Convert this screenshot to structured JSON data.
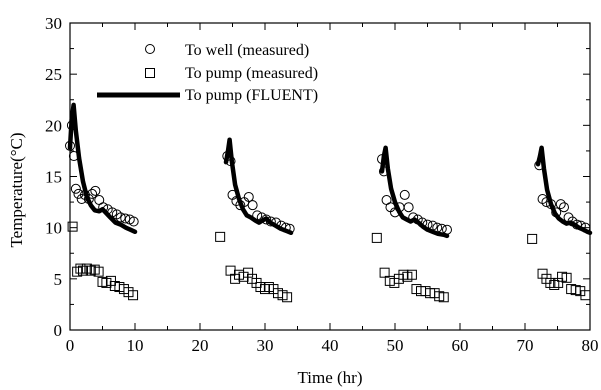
{
  "chart_data": {
    "type": "scatter",
    "title": "",
    "xlabel": "Time (hr)",
    "ylabel": "Temperature(°C)",
    "xlim": [
      0,
      80
    ],
    "ylim": [
      0,
      30
    ],
    "x_ticks": [
      "0",
      "10",
      "20",
      "30",
      "40",
      "50",
      "60",
      "70",
      "80"
    ],
    "y_ticks": [
      "0",
      "5",
      "10",
      "15",
      "20",
      "25",
      "30"
    ],
    "grid": false,
    "legend_position": "top-left",
    "series": [
      {
        "name": "To well (measured)",
        "kind": "scatter",
        "marker": "circle",
        "color": "#000000",
        "points": [
          [
            0.0,
            18.0
          ],
          [
            0.3,
            20.0
          ],
          [
            0.6,
            17.0
          ],
          [
            0.9,
            13.8
          ],
          [
            1.3,
            13.3
          ],
          [
            1.8,
            12.8
          ],
          [
            2.3,
            13.2
          ],
          [
            2.9,
            12.8
          ],
          [
            3.4,
            13.3
          ],
          [
            3.9,
            13.6
          ],
          [
            4.5,
            12.7
          ],
          [
            5.1,
            12.0
          ],
          [
            5.8,
            11.8
          ],
          [
            6.5,
            11.5
          ],
          [
            7.2,
            11.3
          ],
          [
            7.8,
            11.0
          ],
          [
            8.5,
            10.9
          ],
          [
            9.2,
            10.8
          ],
          [
            9.8,
            10.6
          ],
          [
            24.2,
            17.0
          ],
          [
            24.7,
            16.5
          ],
          [
            25.0,
            13.2
          ],
          [
            25.6,
            12.6
          ],
          [
            26.2,
            12.2
          ],
          [
            26.8,
            12.5
          ],
          [
            27.5,
            13.0
          ],
          [
            28.1,
            12.2
          ],
          [
            28.8,
            11.2
          ],
          [
            29.5,
            11.0
          ],
          [
            30.2,
            10.8
          ],
          [
            30.9,
            10.6
          ],
          [
            31.7,
            10.5
          ],
          [
            32.5,
            10.2
          ],
          [
            33.2,
            10.0
          ],
          [
            33.8,
            9.9
          ],
          [
            48.0,
            16.7
          ],
          [
            48.3,
            15.5
          ],
          [
            48.7,
            12.7
          ],
          [
            49.3,
            12.0
          ],
          [
            50.0,
            11.5
          ],
          [
            50.7,
            12.0
          ],
          [
            51.5,
            13.2
          ],
          [
            52.1,
            12.0
          ],
          [
            52.8,
            11.0
          ],
          [
            53.5,
            10.8
          ],
          [
            54.2,
            10.5
          ],
          [
            55.0,
            10.3
          ],
          [
            55.8,
            10.2
          ],
          [
            56.5,
            10.0
          ],
          [
            57.2,
            9.9
          ],
          [
            58.0,
            9.8
          ],
          [
            72.2,
            16.1
          ],
          [
            72.7,
            12.8
          ],
          [
            73.3,
            12.5
          ],
          [
            74.0,
            12.3
          ],
          [
            74.8,
            11.5
          ],
          [
            75.5,
            12.3
          ],
          [
            76.0,
            12.0
          ],
          [
            76.7,
            11.0
          ],
          [
            77.3,
            10.6
          ],
          [
            78.0,
            10.3
          ],
          [
            78.6,
            10.2
          ],
          [
            79.3,
            10.0
          ]
        ]
      },
      {
        "name": "To pump (measured)",
        "kind": "scatter",
        "marker": "square",
        "color": "#000000",
        "points": [
          [
            0.4,
            10.1
          ],
          [
            1.1,
            5.7
          ],
          [
            1.6,
            6.0
          ],
          [
            2.0,
            5.8
          ],
          [
            2.6,
            6.0
          ],
          [
            3.2,
            5.8
          ],
          [
            3.8,
            5.9
          ],
          [
            4.4,
            5.7
          ],
          [
            5.0,
            4.7
          ],
          [
            5.6,
            4.6
          ],
          [
            6.3,
            4.8
          ],
          [
            6.9,
            4.3
          ],
          [
            7.6,
            4.2
          ],
          [
            8.3,
            4.0
          ],
          [
            9.0,
            3.7
          ],
          [
            9.7,
            3.4
          ],
          [
            23.1,
            9.1
          ],
          [
            24.7,
            5.8
          ],
          [
            25.4,
            5.0
          ],
          [
            26.0,
            5.4
          ],
          [
            26.7,
            5.2
          ],
          [
            27.4,
            5.6
          ],
          [
            28.0,
            5.0
          ],
          [
            28.7,
            4.6
          ],
          [
            29.3,
            4.2
          ],
          [
            30.0,
            4.0
          ],
          [
            30.6,
            4.2
          ],
          [
            31.3,
            4.0
          ],
          [
            32.0,
            3.6
          ],
          [
            32.7,
            3.4
          ],
          [
            33.4,
            3.2
          ],
          [
            47.2,
            9.0
          ],
          [
            48.4,
            5.6
          ],
          [
            49.2,
            4.8
          ],
          [
            49.9,
            4.6
          ],
          [
            50.6,
            5.0
          ],
          [
            51.3,
            5.4
          ],
          [
            51.9,
            5.2
          ],
          [
            52.6,
            5.4
          ],
          [
            53.3,
            4.0
          ],
          [
            54.0,
            3.8
          ],
          [
            54.7,
            3.8
          ],
          [
            55.4,
            3.6
          ],
          [
            56.1,
            3.6
          ],
          [
            56.8,
            3.3
          ],
          [
            57.5,
            3.2
          ],
          [
            71.1,
            8.9
          ],
          [
            72.7,
            5.5
          ],
          [
            73.3,
            5.0
          ],
          [
            73.9,
            4.6
          ],
          [
            74.5,
            4.4
          ],
          [
            75.1,
            4.6
          ],
          [
            75.7,
            5.2
          ],
          [
            76.4,
            5.1
          ],
          [
            77.1,
            4.0
          ],
          [
            77.8,
            3.9
          ],
          [
            78.5,
            3.8
          ],
          [
            79.3,
            3.4
          ]
        ]
      },
      {
        "name": "To pump (FLUENT)",
        "kind": "line",
        "color": "#000000",
        "segments": [
          [
            [
              0.0,
              17.8
            ],
            [
              0.25,
              20.5
            ],
            [
              0.55,
              22.0
            ],
            [
              0.9,
              19.5
            ],
            [
              1.4,
              16.8
            ],
            [
              2.0,
              14.5
            ],
            [
              2.6,
              13.0
            ],
            [
              3.2,
              12.2
            ],
            [
              3.8,
              11.7
            ],
            [
              4.5,
              11.6
            ],
            [
              5.0,
              11.8
            ],
            [
              5.6,
              11.4
            ],
            [
              6.2,
              11.0
            ],
            [
              7.0,
              10.5
            ],
            [
              7.8,
              10.3
            ],
            [
              8.6,
              10.0
            ],
            [
              9.3,
              9.8
            ],
            [
              10.0,
              9.6
            ]
          ],
          [
            [
              24.0,
              16.4
            ],
            [
              24.3,
              17.5
            ],
            [
              24.55,
              18.6
            ],
            [
              24.9,
              16.5
            ],
            [
              25.4,
              14.2
            ],
            [
              26.0,
              12.8
            ],
            [
              26.6,
              11.8
            ],
            [
              27.2,
              11.2
            ],
            [
              27.8,
              11.0
            ],
            [
              28.5,
              10.7
            ],
            [
              29.1,
              10.5
            ],
            [
              29.6,
              10.7
            ],
            [
              30.2,
              10.9
            ],
            [
              30.8,
              10.5
            ],
            [
              31.6,
              10.2
            ],
            [
              32.4,
              9.9
            ],
            [
              33.2,
              9.7
            ],
            [
              34.0,
              9.5
            ]
          ],
          [
            [
              48.0,
              15.5
            ],
            [
              48.3,
              17.0
            ],
            [
              48.55,
              17.8
            ],
            [
              48.9,
              15.8
            ],
            [
              49.4,
              13.8
            ],
            [
              50.0,
              12.5
            ],
            [
              50.6,
              11.6
            ],
            [
              51.2,
              11.0
            ],
            [
              51.8,
              10.8
            ],
            [
              52.4,
              10.6
            ],
            [
              53.0,
              10.8
            ],
            [
              53.6,
              10.5
            ],
            [
              54.3,
              10.1
            ],
            [
              55.0,
              9.8
            ],
            [
              55.8,
              9.6
            ],
            [
              56.6,
              9.4
            ],
            [
              57.5,
              9.3
            ],
            [
              58.0,
              9.2
            ]
          ],
          [
            [
              72.0,
              16.2
            ],
            [
              72.3,
              17.0
            ],
            [
              72.55,
              17.8
            ],
            [
              72.9,
              15.8
            ],
            [
              73.4,
              13.7
            ],
            [
              74.0,
              12.3
            ],
            [
              74.6,
              11.4
            ],
            [
              75.2,
              10.9
            ],
            [
              75.8,
              10.6
            ],
            [
              76.4,
              10.4
            ],
            [
              77.0,
              10.5
            ],
            [
              77.6,
              10.3
            ],
            [
              78.3,
              10.0
            ],
            [
              79.0,
              9.8
            ],
            [
              79.6,
              9.6
            ],
            [
              80.0,
              9.5
            ]
          ]
        ]
      }
    ]
  }
}
